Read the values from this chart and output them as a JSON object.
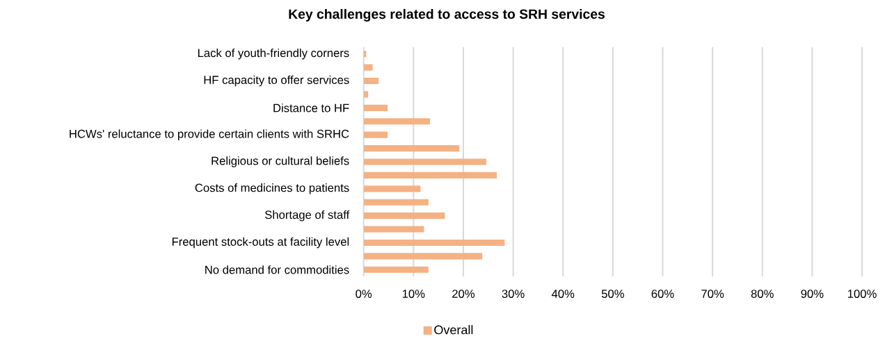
{
  "chart_data": {
    "type": "bar",
    "orientation": "horizontal",
    "title": "Key challenges related to access to SRH services",
    "categories": [
      "Lack of youth-friendly corners",
      null,
      "HF capacity to offer services",
      null,
      "Distance to HF",
      null,
      "HCWs' reluctance to provide certain clients with SRHC",
      null,
      "Religious or cultural beliefs",
      null,
      "Costs of medicines to patients",
      null,
      "Shortage of staff",
      null,
      "Frequent stock-outs at facility level",
      null,
      "No demand for commodities"
    ],
    "series": [
      {
        "name": "Overall",
        "color": "#f4b183",
        "values": [
          0.5,
          1.8,
          3.0,
          0.9,
          4.8,
          13.3,
          4.8,
          19.2,
          24.6,
          26.7,
          11.4,
          13.0,
          16.3,
          12.1,
          28.3,
          23.8,
          13.0
        ]
      }
    ],
    "xlim": [
      0,
      100
    ],
    "xticks": [
      {
        "value": 0,
        "label": "0%"
      },
      {
        "value": 10,
        "label": "10%"
      },
      {
        "value": 20,
        "label": "20%"
      },
      {
        "value": 30,
        "label": "30%"
      },
      {
        "value": 40,
        "label": "40%"
      },
      {
        "value": 50,
        "label": "50%"
      },
      {
        "value": 60,
        "label": "60%"
      },
      {
        "value": 70,
        "label": "70%"
      },
      {
        "value": 80,
        "label": "80%"
      },
      {
        "value": 90,
        "label": "90%"
      },
      {
        "value": 100,
        "label": "100%"
      }
    ],
    "grid": "x",
    "legend": "bottom"
  }
}
